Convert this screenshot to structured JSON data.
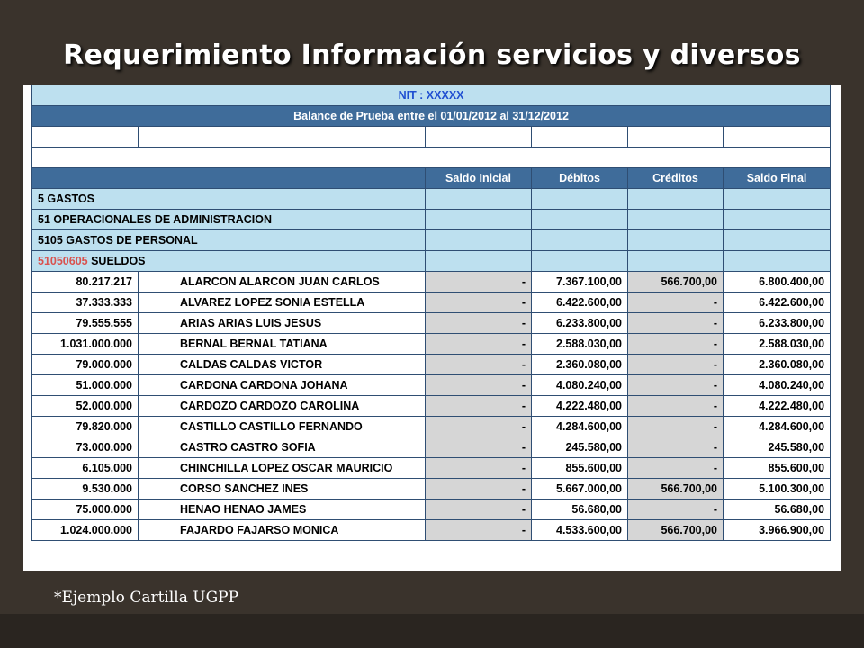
{
  "slide": {
    "title": "Requerimiento Información servicios y diversos",
    "footnote": "*Ejemplo Cartilla UGPP"
  },
  "report": {
    "nit_label": "NIT : XXXXX",
    "balance_label": "Balance de Prueba entre el 01/01/2012 al 31/12/2012",
    "columns": [
      "Saldo Inicial",
      "Débitos",
      "Créditos",
      "Saldo Final"
    ],
    "groups": [
      "5 GASTOS",
      "51 OPERACIONALES DE ADMINISTRACION",
      "5105 GASTOS DE PERSONAL"
    ],
    "cuenta_code": "51050605",
    "cuenta_name": " SUELDOS",
    "rows": [
      {
        "nit": "80.217.217",
        "name": "ALARCON ALARCON  JUAN CARLOS",
        "si": "-",
        "deb": "7.367.100,00",
        "cred": "566.700,00",
        "sf": "6.800.400,00"
      },
      {
        "nit": "37.333.333",
        "name": "ALVAREZ LOPEZ  SONIA ESTELLA",
        "si": "-",
        "deb": "6.422.600,00",
        "cred": "-",
        "sf": "6.422.600,00"
      },
      {
        "nit": "79.555.555",
        "name": "ARIAS ARIAS  LUIS JESUS",
        "si": "-",
        "deb": "6.233.800,00",
        "cred": "-",
        "sf": "6.233.800,00"
      },
      {
        "nit": "1.031.000.000",
        "name": "BERNAL BERNAL TATIANA",
        "si": "-",
        "deb": "2.588.030,00",
        "cred": "-",
        "sf": "2.588.030,00"
      },
      {
        "nit": "79.000.000",
        "name": "CALDAS  CALDAS VICTOR",
        "si": "-",
        "deb": "2.360.080,00",
        "cred": "-",
        "sf": "2.360.080,00"
      },
      {
        "nit": "51.000.000",
        "name": "CARDONA  CARDONA JOHANA",
        "si": "-",
        "deb": "4.080.240,00",
        "cred": "-",
        "sf": "4.080.240,00"
      },
      {
        "nit": "52.000.000",
        "name": "CARDOZO CARDOZO CAROLINA",
        "si": "-",
        "deb": "4.222.480,00",
        "cred": "-",
        "sf": "4.222.480,00"
      },
      {
        "nit": "79.820.000",
        "name": "CASTILLO CASTILLO FERNANDO",
        "si": "-",
        "deb": "4.284.600,00",
        "cred": "-",
        "sf": "4.284.600,00"
      },
      {
        "nit": "73.000.000",
        "name": "CASTRO CASTRO  SOFIA",
        "si": "-",
        "deb": "245.580,00",
        "cred": "-",
        "sf": "245.580,00"
      },
      {
        "nit": "6.105.000",
        "name": "CHINCHILLA LOPEZ  OSCAR MAURICIO",
        "si": "-",
        "deb": "855.600,00",
        "cred": "-",
        "sf": "855.600,00"
      },
      {
        "nit": "9.530.000",
        "name": "CORSO SANCHEZ  INES",
        "si": "-",
        "deb": "5.667.000,00",
        "cred": "566.700,00",
        "sf": "5.100.300,00"
      },
      {
        "nit": "75.000.000",
        "name": "HENAO HENAO  JAMES",
        "si": "-",
        "deb": "56.680,00",
        "cred": "-",
        "sf": "56.680,00"
      },
      {
        "nit": "1.024.000.000",
        "name": "FAJARDO FAJARSO  MONICA",
        "si": "-",
        "deb": "4.533.600,00",
        "cred": "566.700,00",
        "sf": "3.966.900,00"
      }
    ]
  }
}
